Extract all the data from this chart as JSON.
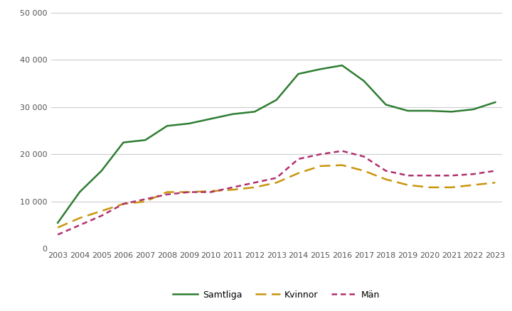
{
  "years": [
    2003,
    2004,
    2005,
    2006,
    2007,
    2008,
    2009,
    2010,
    2011,
    2012,
    2013,
    2014,
    2015,
    2016,
    2017,
    2018,
    2019,
    2020,
    2021,
    2022,
    2023
  ],
  "samtliga": [
    5500,
    12000,
    16500,
    22500,
    23000,
    26000,
    26500,
    27500,
    28500,
    29000,
    31500,
    37000,
    38000,
    38800,
    35500,
    30500,
    29200,
    29200,
    29000,
    29500,
    31000
  ],
  "kvinnor": [
    4500,
    6500,
    8000,
    9500,
    10000,
    12000,
    12000,
    12200,
    12500,
    13000,
    14000,
    16000,
    17500,
    17700,
    16500,
    14700,
    13500,
    13000,
    13000,
    13500,
    14000
  ],
  "man": [
    3000,
    5000,
    7000,
    9500,
    10500,
    11500,
    12000,
    12000,
    13000,
    14000,
    15000,
    19000,
    20000,
    20700,
    19500,
    16500,
    15500,
    15500,
    15500,
    15800,
    16500
  ],
  "samtliga_color": "#2e7d32",
  "kvinnor_color": "#c8960c",
  "man_color": "#b03070",
  "background_color": "#ffffff",
  "grid_color": "#cccccc",
  "ylim": [
    0,
    50000
  ],
  "yticks": [
    0,
    10000,
    20000,
    30000,
    40000,
    50000
  ],
  "legend_labels": [
    "Samtliga",
    "Kvinnor",
    "Män"
  ]
}
